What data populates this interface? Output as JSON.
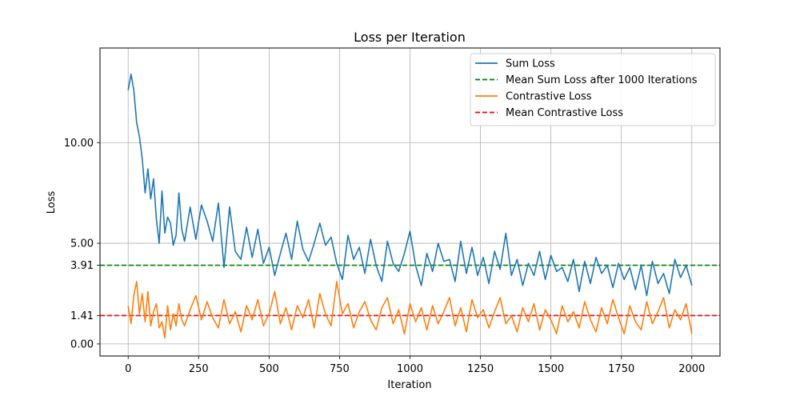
{
  "chart_data": {
    "type": "line",
    "title": "Loss per Iteration",
    "xlabel": "Iteration",
    "ylabel": "Loss",
    "xlim": [
      -100,
      2100
    ],
    "ylim": [
      -0.6,
      14.7
    ],
    "xticks": [
      0,
      250,
      500,
      750,
      1000,
      1250,
      1500,
      1750,
      2000
    ],
    "xtick_labels": [
      "0",
      "250",
      "500",
      "750",
      "1000",
      "1250",
      "1500",
      "1750",
      "2000"
    ],
    "yticks": [
      0.0,
      1.41,
      3.91,
      5.0,
      10.0
    ],
    "ytick_labels": [
      "0.00",
      "1.41",
      "3.91",
      "5.00",
      "10.00"
    ],
    "grid": true,
    "legend_position": "top-right",
    "series": [
      {
        "name": "Sum Loss",
        "kind": "line",
        "color": "#1f77b4",
        "x": [
          0,
          10,
          20,
          30,
          40,
          50,
          60,
          70,
          80,
          90,
          100,
          110,
          120,
          130,
          140,
          150,
          160,
          170,
          180,
          190,
          200,
          220,
          240,
          260,
          280,
          300,
          320,
          340,
          360,
          380,
          400,
          420,
          440,
          460,
          480,
          500,
          520,
          540,
          560,
          580,
          600,
          620,
          640,
          660,
          680,
          700,
          720,
          740,
          760,
          780,
          800,
          820,
          840,
          860,
          880,
          900,
          920,
          940,
          960,
          980,
          1000,
          1020,
          1040,
          1060,
          1080,
          1100,
          1120,
          1140,
          1160,
          1180,
          1200,
          1220,
          1240,
          1260,
          1280,
          1300,
          1320,
          1340,
          1360,
          1380,
          1400,
          1420,
          1440,
          1460,
          1480,
          1500,
          1520,
          1540,
          1560,
          1580,
          1600,
          1620,
          1640,
          1660,
          1680,
          1700,
          1720,
          1740,
          1760,
          1780,
          1800,
          1820,
          1840,
          1860,
          1880,
          1900,
          1920,
          1940,
          1960,
          1980,
          2000
        ],
        "y": [
          12.6,
          13.4,
          12.6,
          11.0,
          10.3,
          9.2,
          7.5,
          8.7,
          7.2,
          8.2,
          6.2,
          5.0,
          7.6,
          5.5,
          6.3,
          6.0,
          4.9,
          5.4,
          7.5,
          5.7,
          5.1,
          6.8,
          5.2,
          6.9,
          6.1,
          5.1,
          7.0,
          3.8,
          6.8,
          4.6,
          4.2,
          5.8,
          4.3,
          5.7,
          4.0,
          4.8,
          3.4,
          4.5,
          5.5,
          4.2,
          6.1,
          4.7,
          4.1,
          5.0,
          6.0,
          4.9,
          5.3,
          4.0,
          3.2,
          5.4,
          4.2,
          4.8,
          3.5,
          5.2,
          3.9,
          3.1,
          5.1,
          4.0,
          3.6,
          4.5,
          5.6,
          3.9,
          2.9,
          4.5,
          3.6,
          5.0,
          4.1,
          4.2,
          3.1,
          5.1,
          3.5,
          4.8,
          3.4,
          4.3,
          3.0,
          4.6,
          3.7,
          5.5,
          3.4,
          4.2,
          2.9,
          4.0,
          3.4,
          4.6,
          3.2,
          4.4,
          3.6,
          3.8,
          3.1,
          4.2,
          2.6,
          4.1,
          3.0,
          4.3,
          3.5,
          3.9,
          2.8,
          4.0,
          3.2,
          3.8,
          2.7,
          3.9,
          2.4,
          4.1,
          3.0,
          3.5,
          2.5,
          4.2,
          3.3,
          3.9,
          2.9
        ]
      },
      {
        "name": "Mean Sum Loss after 1000 Iterations",
        "kind": "hline",
        "color": "#008000",
        "value": 3.91,
        "dashed": true
      },
      {
        "name": "Contrastive Loss",
        "kind": "line",
        "color": "#ff7f0e",
        "x": [
          0,
          10,
          20,
          30,
          40,
          50,
          60,
          70,
          80,
          90,
          100,
          110,
          120,
          130,
          140,
          150,
          160,
          170,
          180,
          190,
          200,
          220,
          240,
          260,
          280,
          300,
          320,
          340,
          360,
          380,
          400,
          420,
          440,
          460,
          480,
          500,
          520,
          540,
          560,
          580,
          600,
          620,
          640,
          660,
          680,
          700,
          720,
          740,
          760,
          780,
          800,
          820,
          840,
          860,
          880,
          900,
          920,
          940,
          960,
          980,
          1000,
          1020,
          1040,
          1060,
          1080,
          1100,
          1120,
          1140,
          1160,
          1180,
          1200,
          1220,
          1240,
          1260,
          1280,
          1300,
          1320,
          1340,
          1360,
          1380,
          1400,
          1420,
          1440,
          1460,
          1480,
          1500,
          1520,
          1540,
          1560,
          1580,
          1600,
          1620,
          1640,
          1660,
          1680,
          1700,
          1720,
          1740,
          1760,
          1780,
          1800,
          1820,
          1840,
          1860,
          1880,
          1900,
          1920,
          1940,
          1960,
          1980,
          2000
        ],
        "y": [
          1.9,
          1.0,
          2.4,
          3.1,
          1.5,
          2.5,
          1.1,
          2.6,
          0.9,
          1.6,
          2.0,
          0.8,
          1.1,
          0.3,
          1.9,
          0.7,
          1.5,
          0.9,
          2.0,
          1.2,
          0.9,
          1.7,
          2.4,
          1.2,
          2.1,
          1.3,
          0.8,
          2.2,
          1.0,
          1.6,
          0.6,
          1.9,
          1.2,
          2.2,
          0.9,
          1.5,
          2.6,
          1.0,
          1.8,
          0.7,
          1.9,
          1.3,
          2.2,
          0.8,
          2.5,
          1.5,
          0.9,
          3.1,
          1.5,
          2.0,
          0.8,
          1.6,
          2.1,
          1.2,
          0.7,
          1.8,
          2.3,
          1.0,
          1.7,
          0.5,
          2.0,
          1.1,
          1.8,
          0.7,
          1.9,
          1.0,
          1.6,
          2.3,
          0.9,
          1.8,
          0.6,
          2.2,
          1.3,
          1.7,
          0.8,
          1.6,
          2.3,
          1.0,
          1.4,
          0.6,
          1.8,
          1.1,
          2.0,
          0.7,
          1.7,
          1.2,
          0.5,
          1.9,
          1.1,
          1.6,
          0.8,
          2.1,
          1.2,
          0.6,
          1.8,
          1.0,
          2.2,
          1.3,
          0.5,
          1.9,
          1.1,
          0.7,
          2.1,
          1.0,
          1.6,
          2.3,
          0.8,
          1.7,
          1.2,
          2.0,
          0.5
        ]
      },
      {
        "name": "Mean Contrastive Loss",
        "kind": "hline",
        "color": "#ff0000",
        "value": 1.41,
        "dashed": true
      }
    ]
  }
}
